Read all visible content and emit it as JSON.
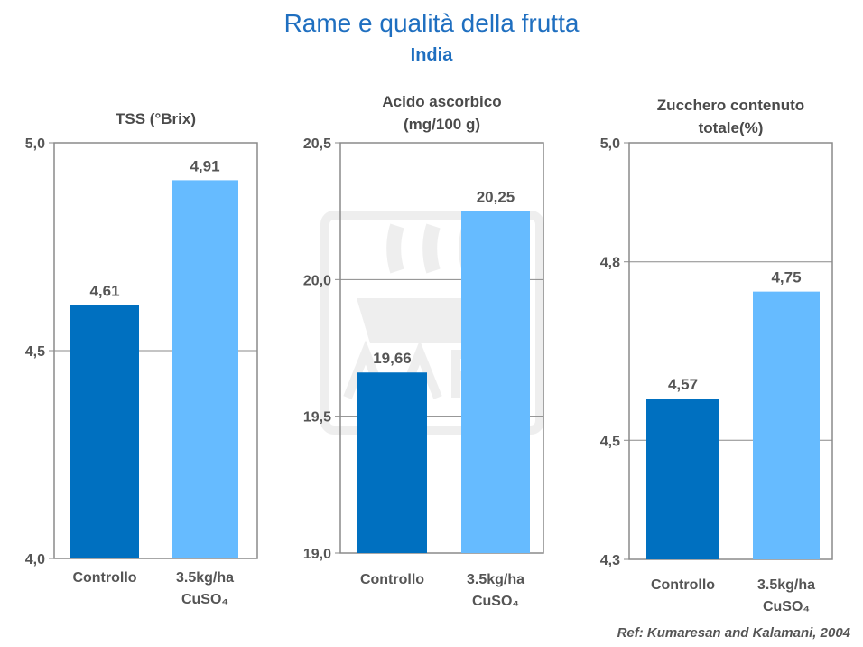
{
  "title": "Rame e qualità della frutta",
  "subtitle": "India",
  "reference": "Ref: Kumaresan and Kalamani, 2004",
  "colors": {
    "control": "#0070c0",
    "treatment": "#66bbff",
    "title": "#1f6fc0"
  },
  "chart_data": [
    {
      "type": "bar",
      "title": [
        "TSS (°Brix)"
      ],
      "categories": [
        [
          "Controllo"
        ],
        [
          "3.5kg/ha",
          "CuSO₄"
        ]
      ],
      "values": [
        4.61,
        4.91
      ],
      "value_labels": [
        "4,61",
        "4,91"
      ],
      "ylim": [
        4.0,
        5.0
      ],
      "yticks": [
        4.0,
        4.5,
        5.0
      ],
      "ytick_labels": [
        "4,0",
        "4,5",
        "5,0"
      ]
    },
    {
      "type": "bar",
      "title": [
        "Acido ascorbico",
        "(mg/100 g)"
      ],
      "categories": [
        [
          "Controllo"
        ],
        [
          "3.5kg/ha",
          "CuSO₄"
        ]
      ],
      "values": [
        19.66,
        20.25
      ],
      "value_labels": [
        "19,66",
        "20,25"
      ],
      "ylim": [
        19.0,
        20.5
      ],
      "yticks": [
        19.0,
        19.5,
        20.0,
        20.5
      ],
      "ytick_labels": [
        "19,0",
        "19,5",
        "20,0",
        "20,5"
      ]
    },
    {
      "type": "bar",
      "title": [
        "Zucchero contenuto",
        "totale(%)"
      ],
      "categories": [
        [
          "Controllo"
        ],
        [
          "3.5kg/ha",
          "CuSO₄"
        ]
      ],
      "values": [
        4.57,
        4.75
      ],
      "value_labels": [
        "4,57",
        "4,75"
      ],
      "ylim": [
        4.3,
        5.0
      ],
      "yticks": [
        4.3,
        4.5,
        4.8,
        5.0
      ],
      "ytick_labels": [
        "4,3",
        "4,5",
        "4,8",
        "5,0"
      ]
    }
  ]
}
